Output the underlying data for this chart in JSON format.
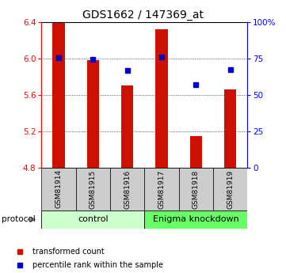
{
  "title": "GDS1662 / 147369_at",
  "samples": [
    "GSM81914",
    "GSM81915",
    "GSM81916",
    "GSM81917",
    "GSM81918",
    "GSM81919"
  ],
  "bar_values": [
    6.39,
    5.98,
    5.7,
    6.32,
    5.15,
    5.66
  ],
  "percentile_values": [
    75.5,
    74.5,
    67.0,
    76.0,
    57.0,
    67.5
  ],
  "ylim_left": [
    4.8,
    6.4
  ],
  "ylim_right": [
    0,
    100
  ],
  "left_ticks": [
    4.8,
    5.2,
    5.6,
    6.0,
    6.4
  ],
  "right_ticks": [
    0,
    25,
    50,
    75,
    100
  ],
  "right_tick_labels": [
    "0",
    "25",
    "50",
    "75",
    "100%"
  ],
  "bar_color": "#cc1100",
  "point_color": "#0000cc",
  "bar_width": 0.35,
  "groups": [
    {
      "label": "control",
      "start": 0,
      "end": 3,
      "color": "#ccffcc"
    },
    {
      "label": "Enigma knockdown",
      "start": 3,
      "end": 6,
      "color": "#66ff66"
    }
  ],
  "protocol_label": "protocol",
  "legend_items": [
    {
      "label": "transformed count",
      "color": "#cc1100"
    },
    {
      "label": "percentile rank within the sample",
      "color": "#0000cc"
    }
  ],
  "grid_color": "#000000",
  "background_color": "#ffffff",
  "sample_box_color": "#cccccc"
}
